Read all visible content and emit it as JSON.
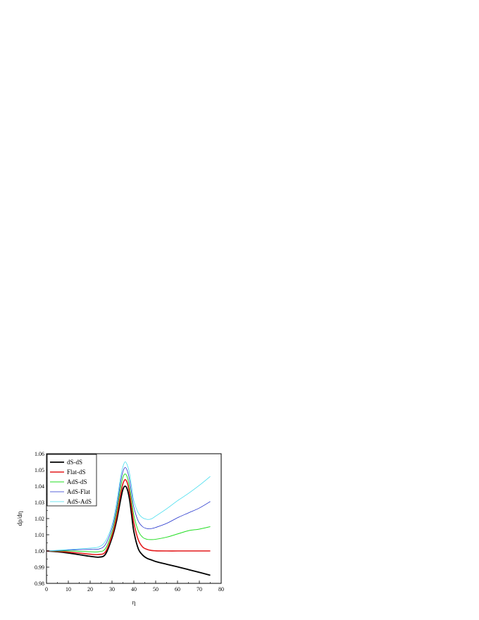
{
  "chart_data": {
    "type": "line",
    "title": "",
    "xlabel": "η",
    "ylabel": "dρ/dη",
    "xlim": [
      0,
      80
    ],
    "ylim": [
      0.98,
      1.06
    ],
    "x_ticks": [
      "0",
      "10",
      "20",
      "30",
      "40",
      "50",
      "60",
      "70",
      "80"
    ],
    "y_ticks": [
      "0.98",
      "0.99",
      "1.00",
      "1.01",
      "1.02",
      "1.03",
      "1.04",
      "1.05",
      "1.06"
    ],
    "grid": false,
    "legend_position": "top-left",
    "x": [
      0,
      5,
      10,
      15,
      20,
      24,
      27,
      30,
      32,
      34,
      35,
      36,
      37,
      38,
      39,
      40,
      42,
      44,
      46,
      48,
      50,
      55,
      60,
      65,
      70,
      75
    ],
    "series": [
      {
        "name": "dS-dS",
        "color": "#000000",
        "values": [
          1.0,
          0.9995,
          0.9987,
          0.9977,
          0.9967,
          0.9962,
          0.998,
          1.008,
          1.018,
          1.032,
          1.038,
          1.04,
          1.038,
          1.032,
          1.022,
          1.012,
          1.0015,
          0.9975,
          0.9955,
          0.9945,
          0.9935,
          0.9918,
          0.9902,
          0.9885,
          0.9868,
          0.985
        ]
      },
      {
        "name": "Flat-dS",
        "color": "#e41a1c",
        "values": [
          1.0,
          0.9998,
          0.9993,
          0.9987,
          0.998,
          0.9978,
          0.9995,
          1.0095,
          1.0205,
          1.0355,
          1.0415,
          1.044,
          1.042,
          1.036,
          1.027,
          1.0175,
          1.007,
          1.0025,
          1.001,
          1.0003,
          1.0001,
          1.0,
          1.0,
          1.0,
          1.0,
          1.0
        ]
      },
      {
        "name": "AdS-dS",
        "color": "#22dd22",
        "values": [
          1.0,
          1.0,
          1.0,
          0.9998,
          0.9995,
          0.9995,
          1.0015,
          1.0115,
          1.0235,
          1.0395,
          1.0455,
          1.0475,
          1.0455,
          1.0395,
          1.031,
          1.022,
          1.0125,
          1.0085,
          1.0072,
          1.007,
          1.0072,
          1.0085,
          1.0105,
          1.0125,
          1.0135,
          1.015
        ]
      },
      {
        "name": "AdS-Flat",
        "color": "#2233cc",
        "values": [
          1.0,
          1.0002,
          1.0005,
          1.0008,
          1.001,
          1.0012,
          1.004,
          1.014,
          1.026,
          1.043,
          1.049,
          1.0515,
          1.0495,
          1.044,
          1.0355,
          1.027,
          1.0185,
          1.015,
          1.0138,
          1.0138,
          1.0145,
          1.017,
          1.0205,
          1.0235,
          1.0265,
          1.0305
        ]
      },
      {
        "name": "AdS-AdS",
        "color": "#44ddee",
        "values": [
          1.0,
          1.0004,
          1.0008,
          1.0013,
          1.0018,
          1.0025,
          1.006,
          1.016,
          1.029,
          1.046,
          1.052,
          1.055,
          1.053,
          1.048,
          1.0395,
          1.031,
          1.0235,
          1.0205,
          1.0195,
          1.0198,
          1.0215,
          1.026,
          1.031,
          1.0355,
          1.0405,
          1.046
        ]
      }
    ]
  }
}
